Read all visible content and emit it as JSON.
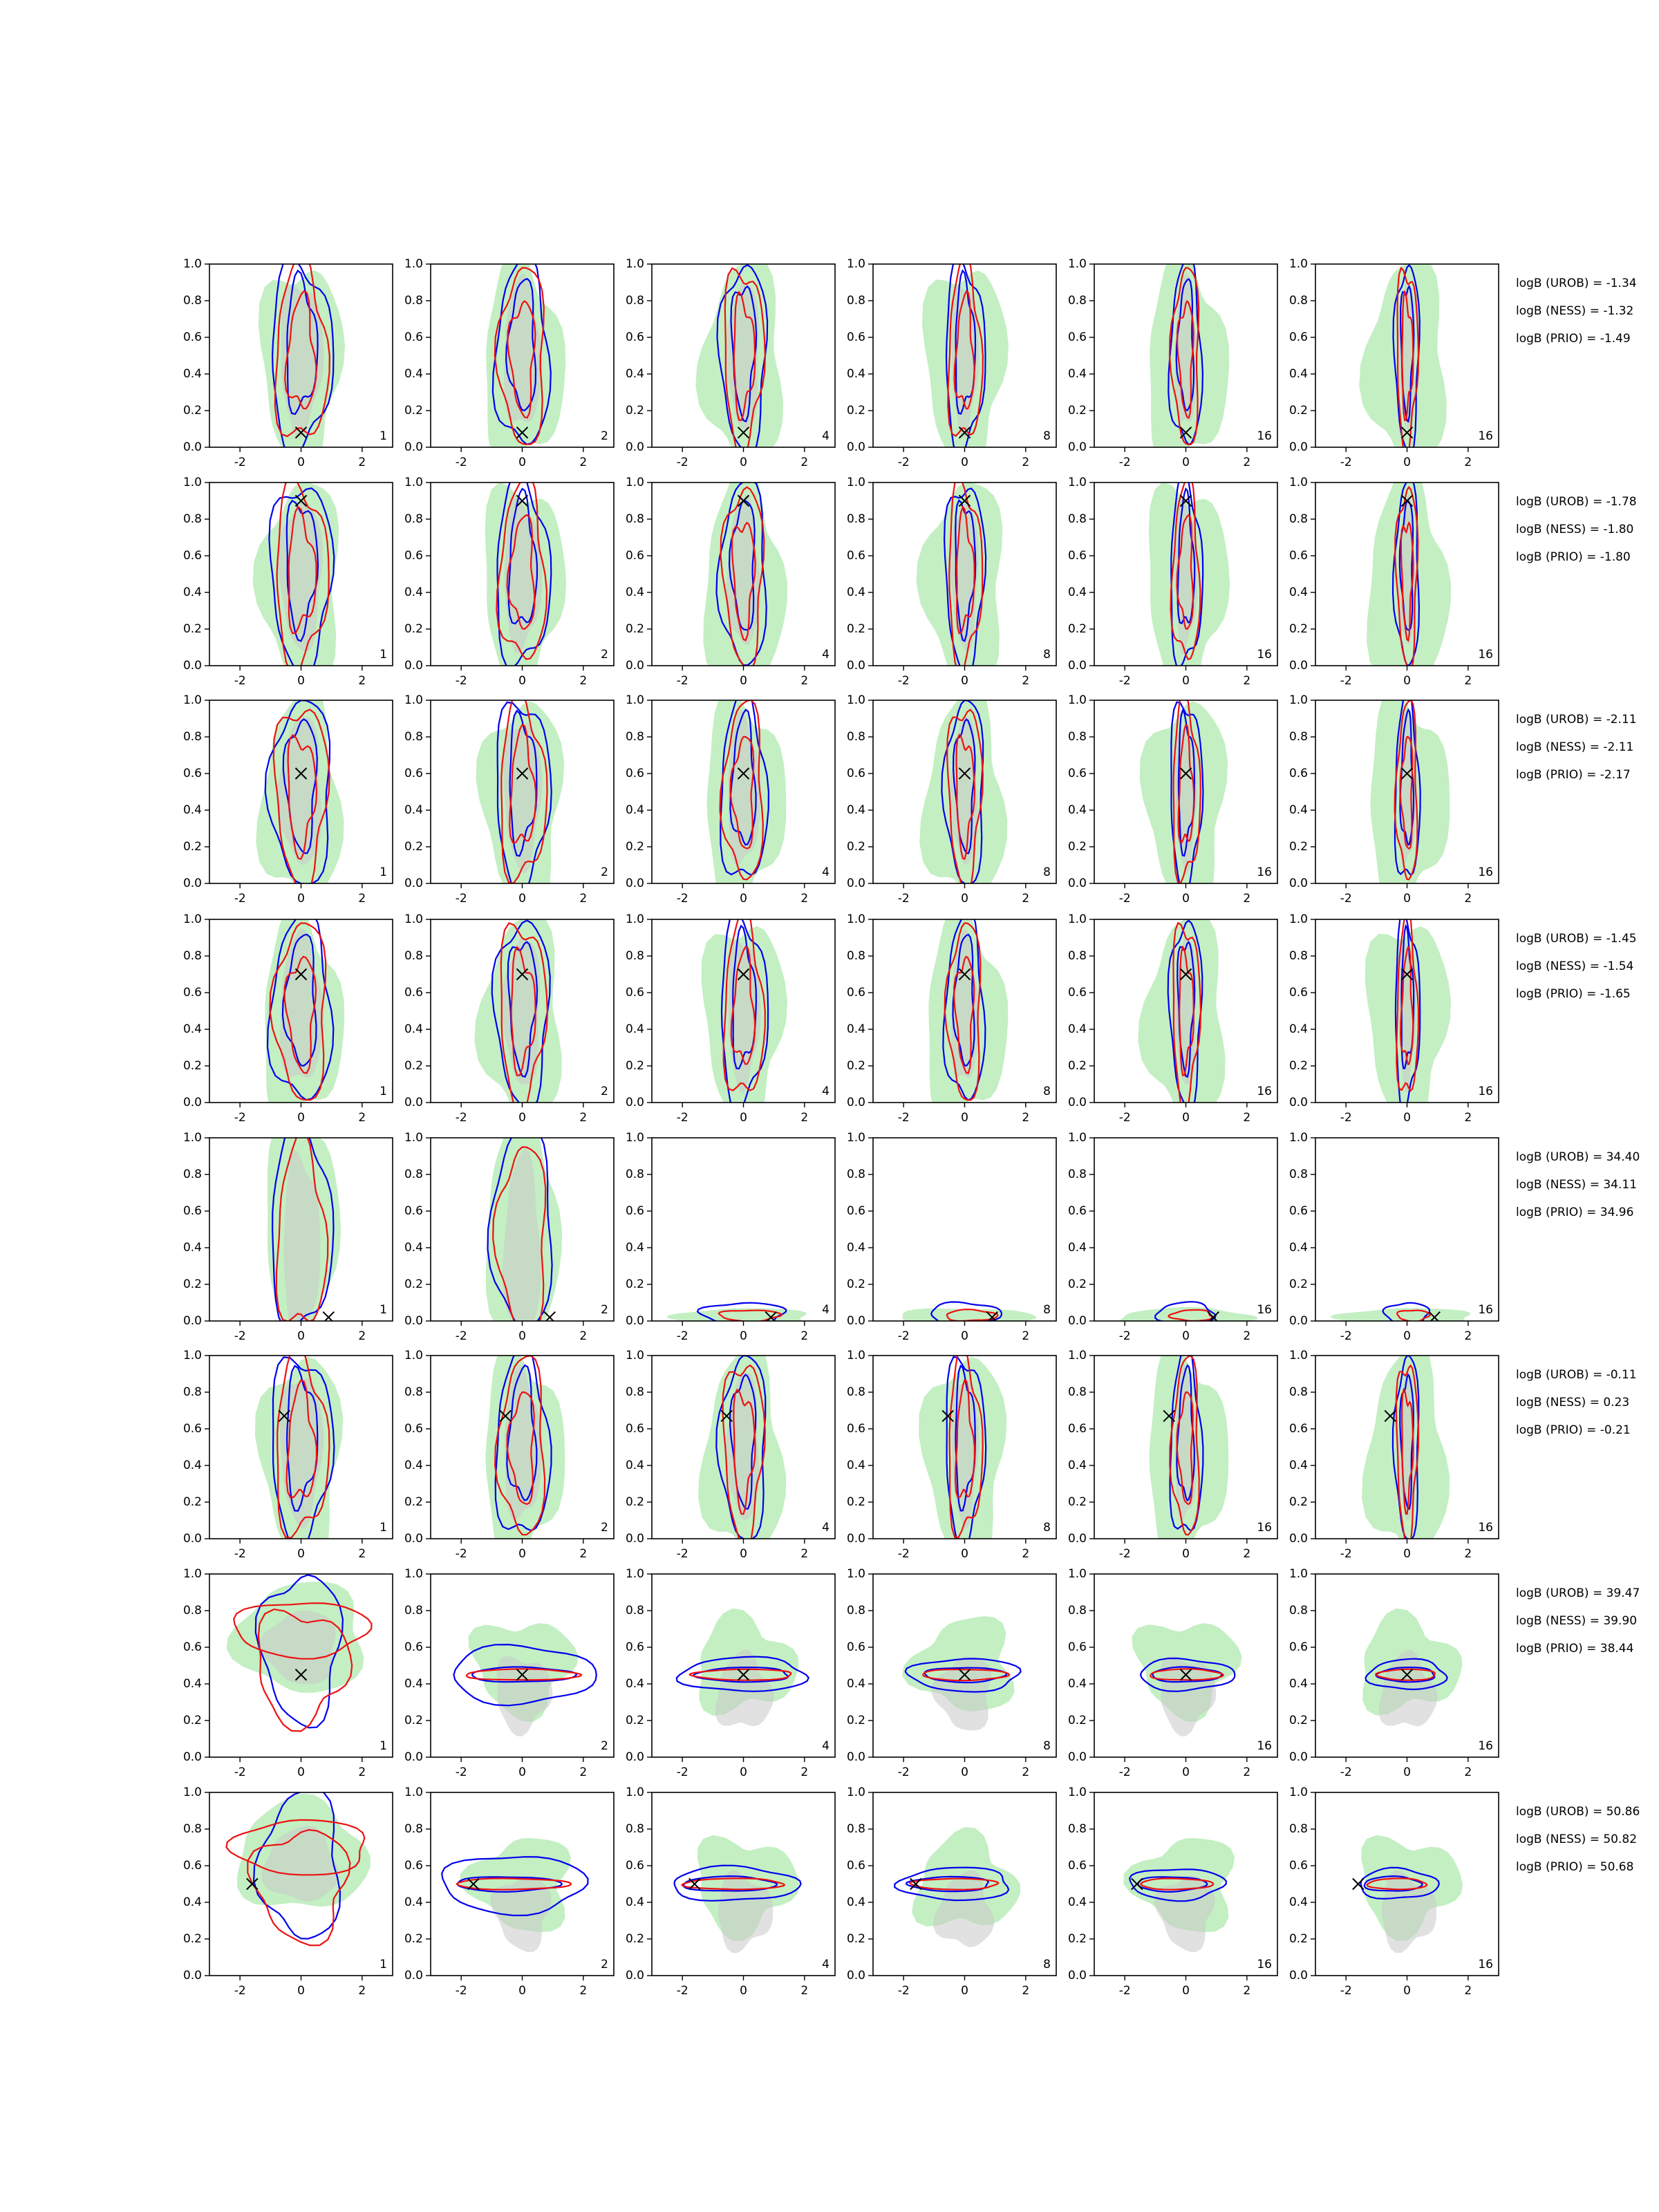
{
  "colors": {
    "green_fill": "#b9ecb9",
    "gray_fill": "#c8c8c8",
    "blue_contour": "#0000ee",
    "red_contour": "#ee1111",
    "marker": "#000000",
    "background": "#ffffff"
  },
  "marker_icon": "x-marker",
  "chart_data": {
    "type": "contour-grid",
    "grid": {
      "rows": 8,
      "cols": 6
    },
    "xlim": [
      -3,
      3
    ],
    "ylim": [
      0,
      1
    ],
    "xticks": [
      -2,
      0,
      2
    ],
    "xtick_labels": [
      "-2",
      "0",
      "2"
    ],
    "yticks": [
      0.0,
      0.2,
      0.4,
      0.6,
      0.8,
      1.0
    ],
    "ytick_labels": [
      "0.0",
      "0.2",
      "0.4",
      "0.6",
      "0.8",
      "1.0"
    ],
    "column_labels": [
      "1",
      "2",
      "4",
      "8",
      "16",
      "16"
    ],
    "rows": [
      {
        "marker": [
          0,
          0.08
        ],
        "shape": "vertical",
        "logB": [
          "logB (UROB) = -1.34",
          "logB (NESS) = -1.32",
          "logB (PRIO) = -1.49"
        ]
      },
      {
        "marker": [
          0,
          0.9
        ],
        "shape": "vertical",
        "logB": [
          "logB (UROB) = -1.78",
          "logB (NESS) = -1.80",
          "logB (PRIO) = -1.80"
        ]
      },
      {
        "marker": [
          0,
          0.6
        ],
        "shape": "vertical",
        "logB": [
          "logB (UROB) = -2.11",
          "logB (NESS) = -2.11",
          "logB (PRIO) = -2.17"
        ]
      },
      {
        "marker": [
          0,
          0.7
        ],
        "shape": "vertical",
        "logB": [
          "logB (UROB) = -1.45",
          "logB (NESS) = -1.54",
          "logB (PRIO) = -1.65"
        ]
      },
      {
        "marker": [
          0.9,
          0.02
        ],
        "shape": "bottom",
        "logB": [
          "logB (UROB) = 34.40",
          "logB (NESS) = 34.11",
          "logB (PRIO) = 34.96"
        ]
      },
      {
        "marker": [
          -0.55,
          0.67
        ],
        "shape": "vertical",
        "logB": [
          "logB (UROB) = -0.11",
          "logB (NESS) = 0.23",
          "logB (PRIO) = -0.21"
        ]
      },
      {
        "marker": [
          0,
          0.45
        ],
        "shape": "horizontal",
        "logB": [
          "logB (UROB) = 39.47",
          "logB (NESS) = 39.90",
          "logB (PRIO) = 38.44"
        ]
      },
      {
        "marker": [
          -1.6,
          0.5
        ],
        "shape": "horizontal",
        "logB": [
          "logB (UROB) = 50.86",
          "logB (NESS) = 50.82",
          "logB (PRIO) = 50.68"
        ]
      }
    ]
  }
}
